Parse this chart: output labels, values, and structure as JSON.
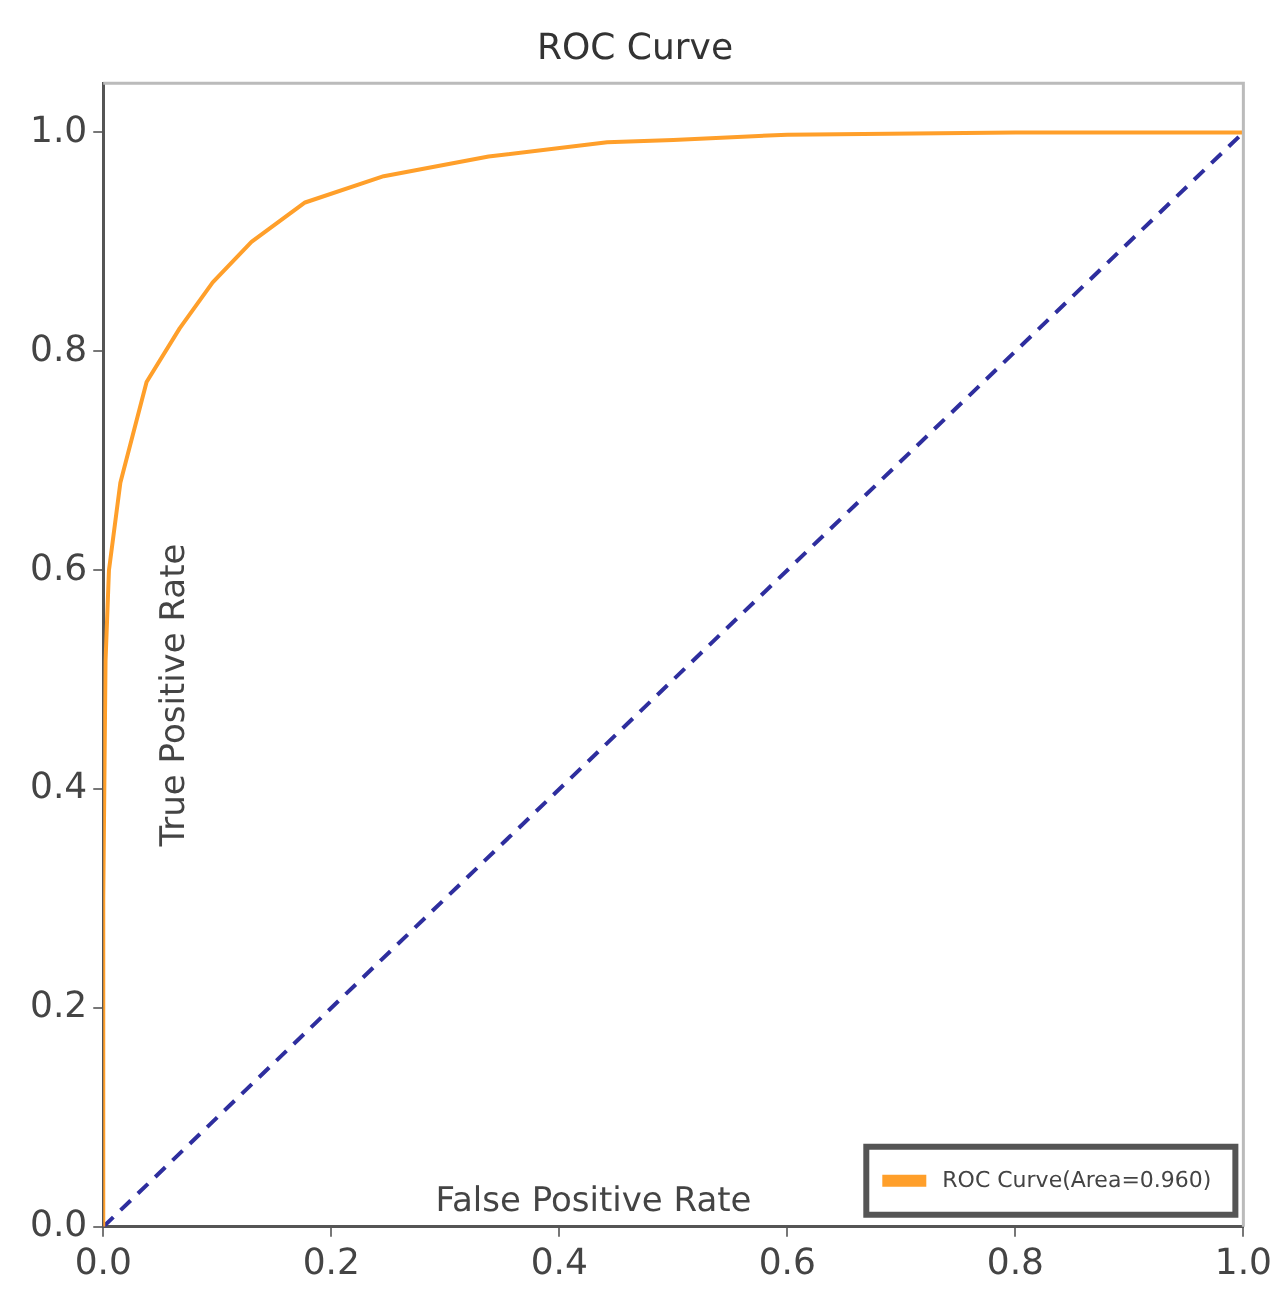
{
  "chart_data": {
    "type": "line",
    "title": "ROC Curve",
    "xlabel": "False Positive Rate",
    "ylabel": "True Positive Rate",
    "xlim": [
      0,
      1
    ],
    "ylim": [
      0,
      1.045
    ],
    "xticks": [
      {
        "value": 0,
        "label": "0.0"
      },
      0.2,
      0.4,
      0.6,
      0.8,
      {
        "value": 1,
        "label": "1.0"
      }
    ],
    "yticks": [
      {
        "value": 0,
        "label": "0.0"
      },
      0.2,
      0.4,
      0.6,
      0.8,
      {
        "value": 1,
        "label": "1.0"
      }
    ],
    "grid": false,
    "legend": "bottom right",
    "marker": "none",
    "series": [
      {
        "name": "ROC Curve(Area=0.960)",
        "color": "#ff9f2a",
        "x": [
          0,
          0,
          0.002,
          0.005,
          0.015,
          0.038,
          0.067,
          0.096,
          0.13,
          0.177,
          0.246,
          0.338,
          0.442,
          0.5,
          0.6,
          0.8,
          1
        ],
        "values": [
          0,
          0.3,
          0.517,
          0.6,
          0.68,
          0.772,
          0.821,
          0.863,
          0.9,
          0.936,
          0.96,
          0.978,
          0.991,
          0.993,
          0.998,
          1,
          1
        ]
      },
      {
        "color": "#2e2e9e",
        "line_style": "dashed",
        "x": [
          0,
          1
        ],
        "values": [
          0,
          1
        ]
      }
    ]
  }
}
